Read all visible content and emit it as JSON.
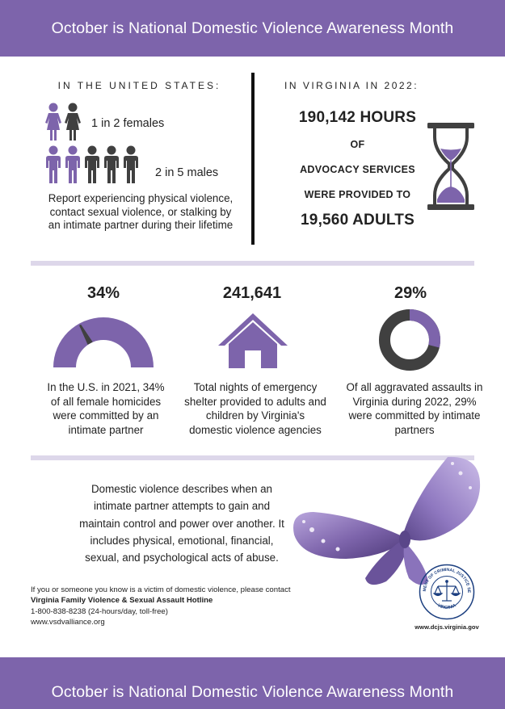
{
  "banner": {
    "title": "October is National Domestic Violence Awareness Month"
  },
  "us": {
    "heading": "IN THE UNITED STATES:",
    "females": "1 in 2 females",
    "males": "2 in 5 males",
    "caption": "Report experiencing physical violence, contact sexual violence, or stalking by an intimate partner during their lifetime"
  },
  "virginia": {
    "heading": "IN VIRGINIA IN 2022:",
    "hours": "190,142 HOURS",
    "of": "OF",
    "advocacy": "ADVOCACY SERVICES",
    "provided": "WERE PROVIDED TO",
    "adults": "19,560 ADULTS"
  },
  "stats": [
    {
      "value": "34%",
      "caption": "In the U.S. in 2021, 34% of all female homicides were committed by an intimate partner"
    },
    {
      "value": "241,641",
      "caption": "Total nights of emergency shelter provided to adults and children by Virginia's domestic violence agencies"
    },
    {
      "value": "29%",
      "caption": "Of all aggravated assaults in Virginia during 2022, 29% were committed by intimate partners"
    }
  ],
  "gauge_fraction": 0.34,
  "donut_fraction": 0.29,
  "definition": "Domestic violence describes when an intimate partner attempts to gain and maintain control and power over another. It includes physical, emotional, financial, sexual, and psychological acts of abuse.",
  "contact": {
    "intro": "If you or someone you know is a victim of domestic violence, please contact",
    "hotline": "Virginia Family Violence & Sexual Assault Hotline",
    "phone": "1-800-838-8238 (24-hours/day, toll-free)",
    "website": "www.vsdvalliance.org"
  },
  "logo": {
    "top_text": "DEPARTMENT OF CRIMINAL JUSTICE SERVICES",
    "bottom_text": "VIRGINIA",
    "icon": "scales-of-justice-icon"
  },
  "dcjs_site": "www.dcjs.virginia.gov",
  "colors": {
    "purple": "#7d64ab",
    "dark": "#404040",
    "light_lavender": "#ddd7ea",
    "navy": "#1c3f80"
  }
}
